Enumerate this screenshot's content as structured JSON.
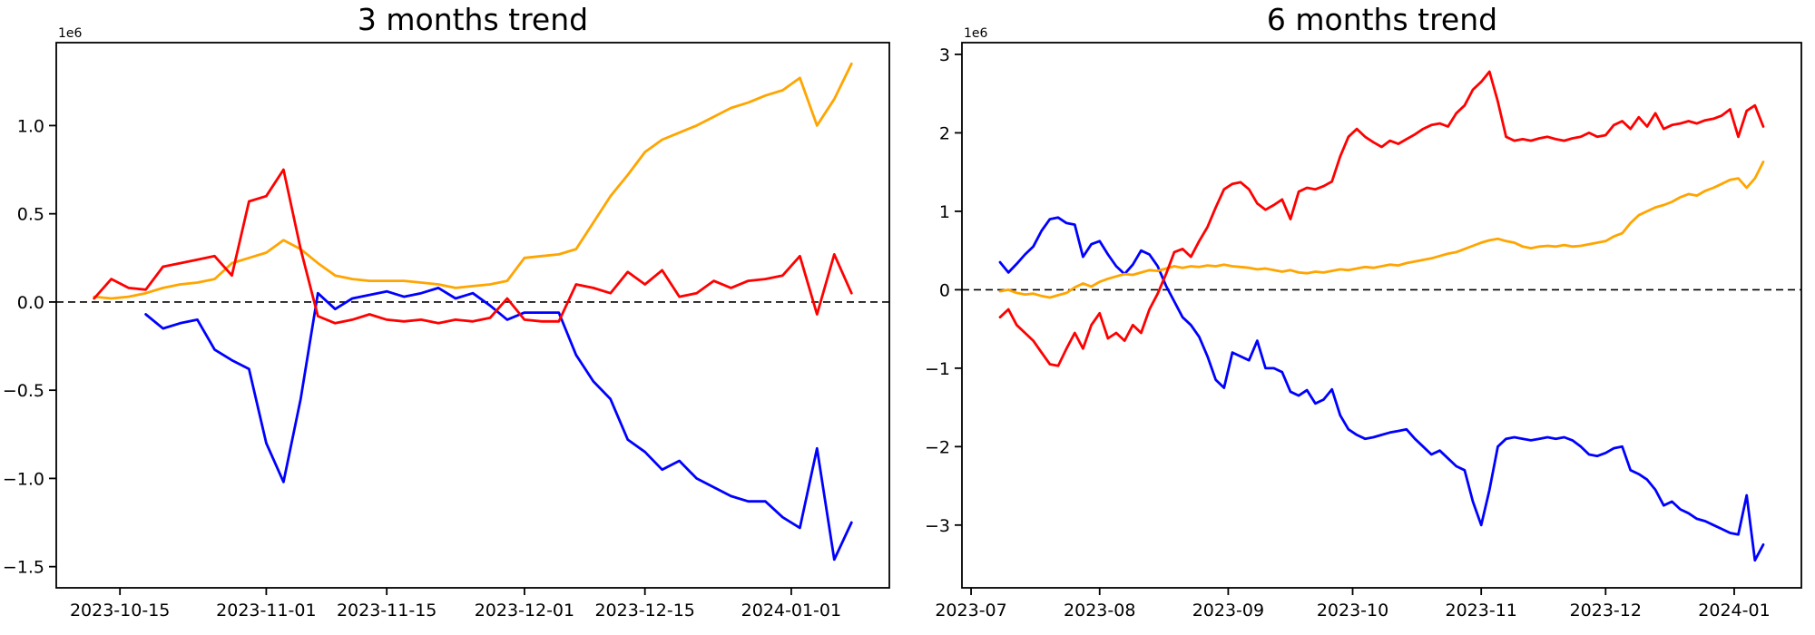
{
  "figure": {
    "background": "#ffffff"
  },
  "colors": {
    "red_series": "#ff0000",
    "orange_series": "#ffa500",
    "blue_series": "#0000ff",
    "zero_line": "#000000",
    "axis": "#000000",
    "text": "#000000"
  },
  "chart_data": [
    {
      "type": "line",
      "title": "3 months trend",
      "y_offset_label": "1e6",
      "y_unit_multiplier": 1000000,
      "grid": false,
      "legend": null,
      "zero_line": {
        "style": "dashed",
        "value": 0
      },
      "x_start_date": "2023-10-12",
      "x_step_days": 2,
      "x_total_days": 88,
      "ylim": [
        -1.62,
        1.47
      ],
      "x_ticks": [
        {
          "label": "2023-10-15",
          "day": 3
        },
        {
          "label": "2023-11-01",
          "day": 20
        },
        {
          "label": "2023-11-15",
          "day": 34
        },
        {
          "label": "2023-12-01",
          "day": 50
        },
        {
          "label": "2023-12-15",
          "day": 64
        },
        {
          "label": "2024-01-01",
          "day": 81
        }
      ],
      "y_ticks": [
        {
          "label": "1.0",
          "value": 1.0
        },
        {
          "label": "0.5",
          "value": 0.5
        },
        {
          "label": "0.0",
          "value": 0.0
        },
        {
          "label": "−0.5",
          "value": -0.5
        },
        {
          "label": "−1.0",
          "value": -1.0
        },
        {
          "label": "−1.5",
          "value": -1.5
        }
      ],
      "series": [
        {
          "name": "blue",
          "color": "blue_series",
          "values_1e6": [
            null,
            null,
            null,
            -0.07,
            -0.15,
            -0.12,
            -0.1,
            -0.27,
            -0.33,
            -0.38,
            -0.8,
            -1.02,
            -0.55,
            0.05,
            -0.04,
            0.02,
            0.04,
            0.06,
            0.03,
            0.05,
            0.08,
            0.02,
            0.05,
            -0.02,
            -0.1,
            -0.06,
            -0.06,
            -0.06,
            -0.3,
            -0.45,
            -0.55,
            -0.78,
            -0.85,
            -0.95,
            -0.9,
            -1.0,
            -1.05,
            -1.1,
            -1.13,
            -1.13,
            -1.22,
            -1.28,
            -0.83,
            -1.46,
            -1.25
          ]
        },
        {
          "name": "orange",
          "color": "orange_series",
          "values_1e6": [
            0.03,
            0.02,
            0.03,
            0.05,
            0.08,
            0.1,
            0.11,
            0.13,
            0.22,
            0.25,
            0.28,
            0.35,
            0.3,
            0.22,
            0.15,
            0.13,
            0.12,
            0.12,
            0.12,
            0.11,
            0.1,
            0.08,
            0.09,
            0.1,
            0.12,
            0.25,
            0.26,
            0.27,
            0.3,
            0.45,
            0.6,
            0.72,
            0.85,
            0.92,
            0.96,
            1.0,
            1.05,
            1.1,
            1.13,
            1.17,
            1.2,
            1.27,
            1.0,
            1.15,
            1.35
          ]
        },
        {
          "name": "red",
          "color": "red_series",
          "values_1e6": [
            0.02,
            0.13,
            0.08,
            0.07,
            0.2,
            0.22,
            0.24,
            0.26,
            0.15,
            0.57,
            0.6,
            0.75,
            0.3,
            -0.08,
            -0.12,
            -0.1,
            -0.07,
            -0.1,
            -0.11,
            -0.1,
            -0.12,
            -0.1,
            -0.11,
            -0.09,
            0.02,
            -0.1,
            -0.11,
            -0.11,
            0.1,
            0.08,
            0.05,
            0.17,
            0.1,
            0.18,
            0.03,
            0.05,
            0.12,
            0.08,
            0.12,
            0.13,
            0.15,
            0.26,
            -0.07,
            0.27,
            0.05
          ]
        }
      ]
    },
    {
      "type": "line",
      "title": "6 months trend",
      "y_offset_label": "1e6",
      "y_unit_multiplier": 1000000,
      "grid": false,
      "legend": null,
      "zero_line": {
        "style": "dashed",
        "value": 0
      },
      "x_start_date": "2023-07-08",
      "x_step_days": 2,
      "x_total_days": 184,
      "ylim": [
        -3.8,
        3.15
      ],
      "x_ticks": [
        {
          "label": "2023-07",
          "day": -7
        },
        {
          "label": "2023-08",
          "day": 24
        },
        {
          "label": "2023-09",
          "day": 55
        },
        {
          "label": "2023-10",
          "day": 85
        },
        {
          "label": "2023-11",
          "day": 116
        },
        {
          "label": "2023-12",
          "day": 146
        },
        {
          "label": "2024-01",
          "day": 177
        }
      ],
      "y_ticks": [
        {
          "label": "3",
          "value": 3
        },
        {
          "label": "2",
          "value": 2
        },
        {
          "label": "1",
          "value": 1
        },
        {
          "label": "0",
          "value": 0
        },
        {
          "label": "−1",
          "value": -1
        },
        {
          "label": "−2",
          "value": -2
        },
        {
          "label": "−3",
          "value": -3
        }
      ],
      "series": [
        {
          "name": "blue",
          "color": "blue_series",
          "values_1e6": [
            0.35,
            0.22,
            0.33,
            0.45,
            0.55,
            0.75,
            0.9,
            0.92,
            0.85,
            0.83,
            0.42,
            0.58,
            0.62,
            0.45,
            0.3,
            0.2,
            0.32,
            0.5,
            0.45,
            0.3,
            0.05,
            -0.15,
            -0.35,
            -0.45,
            -0.6,
            -0.85,
            -1.15,
            -1.25,
            -0.8,
            -0.85,
            -0.9,
            -0.65,
            -1.0,
            -1.0,
            -1.05,
            -1.3,
            -1.35,
            -1.28,
            -1.45,
            -1.4,
            -1.27,
            -1.6,
            -1.78,
            -1.85,
            -1.9,
            -1.88,
            -1.85,
            -1.82,
            -1.8,
            -1.78,
            -1.9,
            -2.0,
            -2.1,
            -2.05,
            -2.15,
            -2.25,
            -2.3,
            -2.7,
            -3.0,
            -2.55,
            -2.0,
            -1.9,
            -1.88,
            -1.9,
            -1.92,
            -1.9,
            -1.88,
            -1.9,
            -1.88,
            -1.92,
            -2.0,
            -2.1,
            -2.12,
            -2.08,
            -2.02,
            -2.0,
            -2.3,
            -2.35,
            -2.42,
            -2.55,
            -2.75,
            -2.7,
            -2.8,
            -2.85,
            -2.92,
            -2.95,
            -3.0,
            -3.05,
            -3.1,
            -3.12,
            -2.62,
            -3.45,
            -3.25
          ]
        },
        {
          "name": "orange",
          "color": "orange_series",
          "values_1e6": [
            -0.02,
            0.0,
            -0.04,
            -0.06,
            -0.05,
            -0.08,
            -0.1,
            -0.07,
            -0.04,
            0.03,
            0.08,
            0.04,
            0.1,
            0.14,
            0.17,
            0.2,
            0.19,
            0.22,
            0.25,
            0.24,
            0.27,
            0.3,
            0.28,
            0.3,
            0.29,
            0.31,
            0.3,
            0.32,
            0.3,
            0.29,
            0.28,
            0.26,
            0.27,
            0.25,
            0.23,
            0.25,
            0.22,
            0.21,
            0.23,
            0.22,
            0.24,
            0.26,
            0.25,
            0.27,
            0.29,
            0.28,
            0.3,
            0.32,
            0.31,
            0.34,
            0.36,
            0.38,
            0.4,
            0.43,
            0.46,
            0.48,
            0.52,
            0.56,
            0.6,
            0.63,
            0.65,
            0.62,
            0.6,
            0.55,
            0.53,
            0.55,
            0.56,
            0.55,
            0.57,
            0.55,
            0.56,
            0.58,
            0.6,
            0.62,
            0.68,
            0.72,
            0.85,
            0.95,
            1.0,
            1.05,
            1.08,
            1.12,
            1.18,
            1.22,
            1.2,
            1.26,
            1.3,
            1.35,
            1.4,
            1.42,
            1.3,
            1.42,
            1.63
          ]
        },
        {
          "name": "red",
          "color": "red_series",
          "values_1e6": [
            -0.35,
            -0.25,
            -0.45,
            -0.55,
            -0.65,
            -0.8,
            -0.95,
            -0.97,
            -0.75,
            -0.55,
            -0.75,
            -0.45,
            -0.3,
            -0.62,
            -0.55,
            -0.65,
            -0.45,
            -0.55,
            -0.25,
            -0.05,
            0.2,
            0.48,
            0.52,
            0.42,
            0.62,
            0.8,
            1.05,
            1.28,
            1.35,
            1.37,
            1.28,
            1.1,
            1.02,
            1.08,
            1.15,
            0.9,
            1.25,
            1.3,
            1.28,
            1.32,
            1.38,
            1.7,
            1.95,
            2.05,
            1.95,
            1.88,
            1.82,
            1.9,
            1.86,
            1.92,
            1.98,
            2.05,
            2.1,
            2.12,
            2.08,
            2.25,
            2.35,
            2.55,
            2.65,
            2.78,
            2.4,
            1.95,
            1.9,
            1.92,
            1.9,
            1.93,
            1.95,
            1.92,
            1.9,
            1.93,
            1.95,
            2.0,
            1.95,
            1.97,
            2.1,
            2.15,
            2.05,
            2.2,
            2.08,
            2.25,
            2.05,
            2.1,
            2.12,
            2.15,
            2.12,
            2.16,
            2.18,
            2.22,
            2.3,
            1.95,
            2.28,
            2.35,
            2.08
          ]
        }
      ]
    }
  ]
}
